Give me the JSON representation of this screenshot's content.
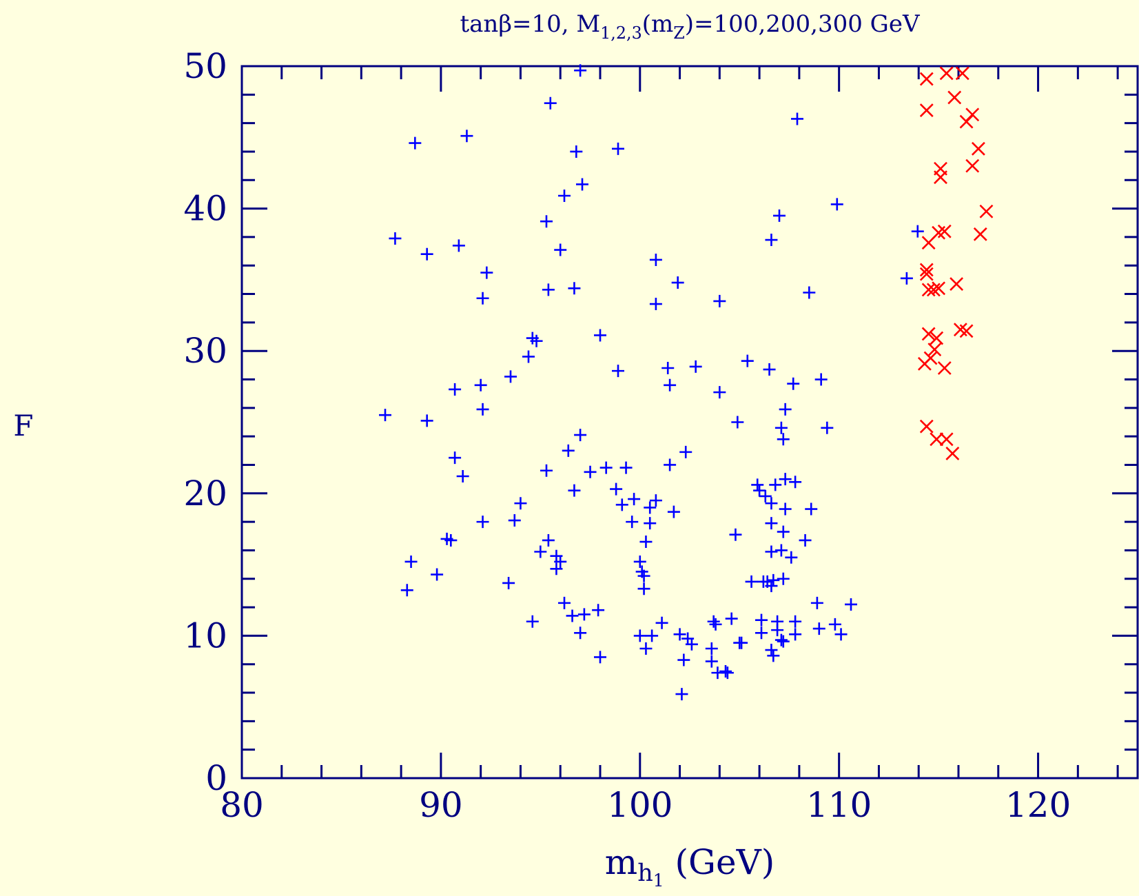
{
  "chart_data": {
    "type": "scatter",
    "title": [
      {
        "text": "tanβ=10, M"
      },
      {
        "text": "1,2,3",
        "baseline": "sub"
      },
      {
        "text": "(m"
      },
      {
        "text": "Z",
        "baseline": "sub"
      },
      {
        "text": ")=100,200,300 GeV"
      }
    ],
    "x_label": [
      {
        "text": "m"
      },
      {
        "text": "h",
        "baseline": "sub"
      },
      {
        "text": "1",
        "baseline": "sub2"
      },
      {
        "text": " (GeV)"
      }
    ],
    "y_label": "F",
    "xlim": [
      80,
      125
    ],
    "ylim": [
      0,
      50
    ],
    "xticks": [
      80,
      90,
      100,
      110,
      120
    ],
    "yticks": [
      0,
      10,
      20,
      30,
      40,
      50
    ],
    "xminorticks": [
      82,
      84,
      86,
      88,
      92,
      94,
      96,
      98,
      102,
      104,
      106,
      108,
      112,
      114,
      116,
      118,
      122,
      124
    ],
    "yminorticks": [
      2,
      4,
      6,
      8,
      12,
      14,
      16,
      18,
      22,
      24,
      26,
      28,
      32,
      34,
      36,
      38,
      42,
      44,
      46,
      48
    ],
    "series": [
      {
        "color": "#0000ff",
        "marker": "plus",
        "x": [
          87.2,
          87.7,
          88.7,
          88.3,
          88.5,
          89.3,
          89.3,
          89.8,
          90.3,
          90.5,
          90.7,
          90.7,
          90.9,
          91.1,
          91.3,
          92.1,
          92.0,
          92.1,
          92.3,
          92.1,
          93.4,
          93.5,
          93.7,
          94.0,
          94.4,
          94.6,
          94.8,
          94.6,
          95.0,
          95.3,
          95.3,
          95.4,
          95.4,
          95.5,
          95.8,
          95.8,
          96.0,
          96.0,
          96.2,
          96.2,
          96.4,
          96.6,
          96.7,
          96.7,
          96.8,
          97.0,
          97.0,
          97.0,
          97.1,
          97.2,
          97.5,
          97.9,
          98.0,
          98.0,
          98.3,
          98.9,
          98.9,
          98.8,
          99.1,
          99.3,
          99.6,
          99.7,
          100.0,
          100.0,
          100.1,
          100.2,
          100.2,
          100.3,
          100.3,
          100.5,
          100.5,
          100.6,
          100.8,
          100.8,
          100.8,
          101.1,
          101.4,
          101.5,
          101.5,
          101.7,
          101.9,
          102.0,
          102.1,
          102.3,
          102.2,
          102.4,
          102.6,
          102.8,
          103.6,
          103.7,
          103.8,
          103.6,
          103.9,
          104.0,
          104.0,
          104.3,
          104.4,
          104.6,
          104.8,
          104.9,
          105.0,
          105.1,
          105.4,
          105.6,
          105.9,
          106.1,
          106.1,
          106.0,
          106.2,
          106.3,
          106.4,
          106.5,
          106.6,
          106.6,
          106.6,
          106.6,
          106.6,
          106.6,
          106.7,
          106.7,
          106.8,
          106.9,
          106.9,
          107.0,
          107.1,
          107.2,
          107.1,
          107.1,
          107.2,
          107.2,
          107.2,
          107.3,
          107.3,
          107.3,
          107.6,
          107.7,
          107.8,
          107.8,
          107.8,
          107.9,
          108.3,
          108.5,
          108.6,
          108.9,
          109.0,
          109.1,
          109.4,
          109.8,
          109.9,
          110.1,
          110.6,
          113.4,
          113.95
        ],
        "values": [
          25.5,
          37.9,
          44.6,
          13.2,
          15.2,
          36.8,
          25.1,
          14.3,
          16.8,
          16.7,
          27.3,
          22.5,
          37.4,
          21.2,
          45.1,
          25.9,
          27.6,
          33.7,
          35.5,
          18.0,
          13.7,
          28.2,
          18.1,
          19.3,
          29.6,
          30.9,
          30.7,
          11.0,
          15.9,
          39.1,
          21.6,
          34.3,
          16.7,
          47.4,
          15.6,
          14.7,
          15.2,
          37.1,
          40.9,
          12.3,
          23.0,
          11.4,
          34.4,
          20.2,
          44.0,
          49.7,
          10.2,
          24.1,
          41.7,
          11.5,
          21.5,
          11.8,
          8.5,
          31.1,
          21.8,
          28.6,
          44.2,
          20.3,
          19.2,
          21.8,
          18.0,
          19.6,
          15.2,
          10.0,
          14.5,
          14.2,
          13.3,
          16.6,
          9.1,
          17.9,
          19.0,
          10.0,
          33.3,
          19.5,
          36.4,
          10.9,
          28.8,
          27.6,
          22.0,
          18.7,
          34.8,
          10.1,
          5.9,
          22.9,
          8.3,
          9.8,
          9.4,
          28.9,
          9.1,
          11.0,
          10.8,
          8.2,
          7.4,
          33.5,
          27.1,
          7.5,
          7.4,
          11.2,
          17.1,
          25.0,
          9.5,
          9.5,
          29.3,
          13.8,
          20.6,
          10.2,
          11.1,
          20.2,
          13.8,
          19.8,
          13.8,
          28.7,
          37.8,
          17.9,
          15.9,
          19.3,
          13.5,
          9.0,
          8.6,
          13.9,
          20.6,
          11.0,
          10.4,
          39.5,
          24.6,
          17.3,
          9.7,
          16.0,
          14.0,
          9.6,
          23.8,
          25.9,
          21.0,
          18.9,
          15.5,
          27.7,
          10.1,
          11.0,
          20.8,
          46.3,
          16.7,
          34.1,
          18.9,
          12.3,
          10.5,
          28.0,
          24.6,
          10.8,
          40.3,
          10.1,
          12.2,
          35.1,
          38.4
        ]
      },
      {
        "color": "#ff0000",
        "marker": "cross",
        "x": [
          114.4,
          115.4,
          116.2,
          114.4,
          115.8,
          116.7,
          116.4,
          117.0,
          116.7,
          115.1,
          115.1,
          117.4,
          117.1,
          115.0,
          115.3,
          114.5,
          114.4,
          114.4,
          115.9,
          114.5,
          115.0,
          114.75,
          116.1,
          116.4,
          114.5,
          114.9,
          114.8,
          114.3,
          114.6,
          115.3,
          114.4,
          114.9,
          115.4,
          115.7
        ],
        "values": [
          49.1,
          49.5,
          49.5,
          46.9,
          47.8,
          46.6,
          46.1,
          44.2,
          43.0,
          42.8,
          42.2,
          39.8,
          38.2,
          38.3,
          38.4,
          37.6,
          35.7,
          35.4,
          34.7,
          34.3,
          34.4,
          34.3,
          31.5,
          31.4,
          31.2,
          30.9,
          30.1,
          29.1,
          29.5,
          28.8,
          24.7,
          23.8,
          23.8,
          22.8
        ]
      }
    ]
  }
}
